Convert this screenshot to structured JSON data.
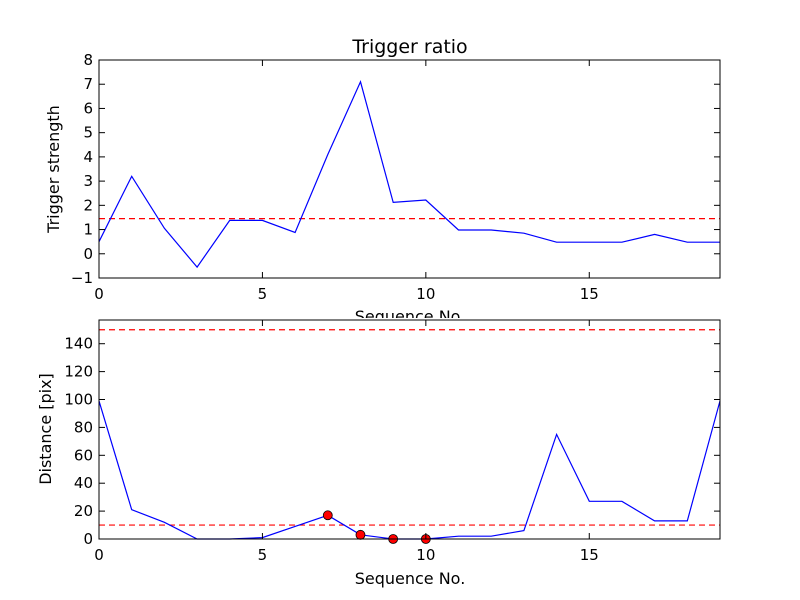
{
  "chart_data": [
    {
      "type": "line",
      "title": "Trigger ratio",
      "xlabel": "Sequence No.",
      "ylabel": "Trigger strength",
      "xlim": [
        0,
        19
      ],
      "ylim": [
        -1,
        8
      ],
      "xticks": [
        "0",
        "5",
        "10",
        "15"
      ],
      "yticks": [
        "−1",
        "0",
        "1",
        "2",
        "3",
        "4",
        "5",
        "6",
        "7",
        "8"
      ],
      "grid": false,
      "series": [
        {
          "x": [
            0,
            1,
            2,
            3,
            4,
            5,
            6,
            7,
            8,
            9,
            10,
            11,
            12,
            13,
            14,
            15,
            16,
            17,
            18,
            19
          ],
          "y": [
            0.5,
            3.2,
            1.05,
            -0.55,
            1.38,
            1.38,
            0.88,
            4.1,
            7.1,
            2.12,
            2.22,
            0.98,
            0.98,
            0.85,
            0.48,
            0.48,
            0.48,
            0.8,
            0.48,
            0.48
          ],
          "color": "#0000ff"
        }
      ],
      "threshold_lines": [
        {
          "y": 1.45,
          "color": "#ff0000",
          "style": "dashed"
        }
      ]
    },
    {
      "type": "line",
      "title": "",
      "xlabel": "Sequence No.",
      "ylabel": "Distance [pix]",
      "xlim": [
        0,
        19
      ],
      "ylim": [
        0,
        157
      ],
      "xticks": [
        "0",
        "5",
        "10",
        "15"
      ],
      "yticks": [
        "0",
        "20",
        "40",
        "60",
        "80",
        "100",
        "120",
        "140"
      ],
      "grid": false,
      "series": [
        {
          "x": [
            0,
            1,
            2,
            3,
            4,
            5,
            6,
            7,
            8,
            9,
            10,
            11,
            12,
            13,
            14,
            15,
            16,
            17,
            18,
            19
          ],
          "y": [
            99,
            21,
            12,
            0,
            0,
            1,
            9,
            17,
            3,
            0,
            0,
            2,
            2,
            6,
            75,
            27,
            27,
            13,
            13,
            99
          ],
          "color": "#0000ff"
        }
      ],
      "markers": {
        "x": [
          7,
          8,
          9,
          10
        ],
        "y": [
          17,
          3,
          0,
          0
        ],
        "color": "#ff0000"
      },
      "threshold_lines": [
        {
          "y": 150,
          "color": "#ff0000",
          "style": "dashed"
        },
        {
          "y": 10,
          "color": "#ff0000",
          "style": "dashed"
        }
      ]
    }
  ]
}
